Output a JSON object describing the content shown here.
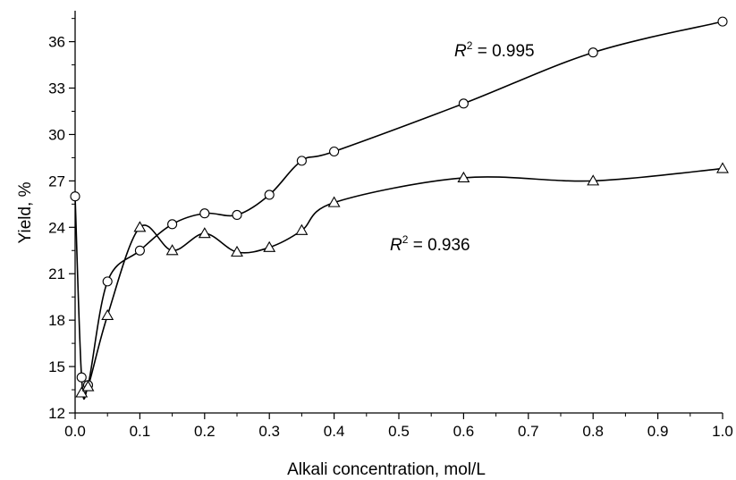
{
  "chart_data": {
    "type": "scatter",
    "xlabel": "Alkali concentration, mol/L",
    "ylabel": "Yield, %",
    "xlim": [
      0,
      1.0
    ],
    "ylim": [
      12,
      38
    ],
    "x_ticks": [
      "0.0",
      "0.1",
      "0.2",
      "0.3",
      "0.4",
      "0.5",
      "0.6",
      "0.7",
      "0.8",
      "0.9",
      "1.0"
    ],
    "y_ticks": [
      "12",
      "15",
      "18",
      "21",
      "24",
      "27",
      "30",
      "33",
      "36"
    ],
    "grid": false,
    "series": [
      {
        "marker": "circle",
        "points": [
          [
            0.0,
            26.0
          ],
          [
            0.01,
            14.3
          ],
          [
            0.02,
            13.8
          ],
          [
            0.05,
            20.5
          ],
          [
            0.1,
            22.5
          ],
          [
            0.15,
            24.2
          ],
          [
            0.2,
            24.9
          ],
          [
            0.25,
            24.8
          ],
          [
            0.3,
            26.1
          ],
          [
            0.35,
            28.3
          ],
          [
            0.4,
            28.9
          ],
          [
            0.6,
            32.0
          ],
          [
            0.8,
            35.3
          ],
          [
            1.0,
            37.3
          ]
        ],
        "fit_label": {
          "R": "R",
          "exp": "2",
          "text": " = 0.995"
        }
      },
      {
        "marker": "triangle",
        "points": [
          [
            0.01,
            13.3
          ],
          [
            0.02,
            13.7
          ],
          [
            0.05,
            18.3
          ],
          [
            0.1,
            24.0
          ],
          [
            0.15,
            22.5
          ],
          [
            0.2,
            23.6
          ],
          [
            0.25,
            22.4
          ],
          [
            0.3,
            22.7
          ],
          [
            0.35,
            23.8
          ],
          [
            0.4,
            25.6
          ],
          [
            0.6,
            27.2
          ],
          [
            0.8,
            27.0
          ],
          [
            1.0,
            27.8
          ]
        ],
        "fit_label": {
          "R": "R",
          "exp": "2",
          "text": " = 0.936"
        }
      }
    ]
  }
}
